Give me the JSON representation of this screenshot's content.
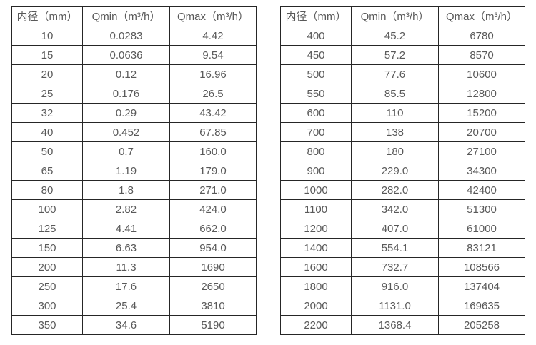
{
  "chart_data": [
    {
      "type": "table",
      "title": "",
      "headers": [
        "内径（mm）",
        "Qmin（m³/h）",
        "Qmax（m³/h）"
      ],
      "rows": [
        [
          "10",
          "0.0283",
          "4.42"
        ],
        [
          "15",
          "0.0636",
          "9.54"
        ],
        [
          "20",
          "0.12",
          "16.96"
        ],
        [
          "25",
          "0.176",
          "26.5"
        ],
        [
          "32",
          "0.29",
          "43.42"
        ],
        [
          "40",
          "0.452",
          "67.85"
        ],
        [
          "50",
          "0.7",
          "160.0"
        ],
        [
          "65",
          "1.19",
          "179.0"
        ],
        [
          "80",
          "1.8",
          "271.0"
        ],
        [
          "100",
          "2.82",
          "424.0"
        ],
        [
          "125",
          "4.41",
          "662.0"
        ],
        [
          "150",
          "6.63",
          "954.0"
        ],
        [
          "200",
          "11.3",
          "1690"
        ],
        [
          "250",
          "17.6",
          "2650"
        ],
        [
          "300",
          "25.4",
          "3810"
        ],
        [
          "350",
          "34.6",
          "5190"
        ]
      ]
    },
    {
      "type": "table",
      "title": "",
      "headers": [
        "内径（mm）",
        "Qmin（m³/h）",
        "Qmax（m³/h）"
      ],
      "rows": [
        [
          "400",
          "45.2",
          "6780"
        ],
        [
          "450",
          "57.2",
          "8570"
        ],
        [
          "500",
          "77.6",
          "10600"
        ],
        [
          "550",
          "85.5",
          "12800"
        ],
        [
          "600",
          "110",
          "15200"
        ],
        [
          "700",
          "138",
          "20700"
        ],
        [
          "800",
          "180",
          "27100"
        ],
        [
          "900",
          "229.0",
          "34300"
        ],
        [
          "1000",
          "282.0",
          "42400"
        ],
        [
          "1100",
          "342.0",
          "51300"
        ],
        [
          "1200",
          "407.0",
          "61000"
        ],
        [
          "1400",
          "554.1",
          "83121"
        ],
        [
          "1600",
          "732.7",
          "108566"
        ],
        [
          "1800",
          "916.0",
          "137404"
        ],
        [
          "2000",
          "1131.0",
          "169635"
        ],
        [
          "2200",
          "1368.4",
          "205258"
        ]
      ]
    }
  ],
  "colors": {
    "border": "#262626",
    "text": "#595959",
    "background": "#ffffff"
  }
}
